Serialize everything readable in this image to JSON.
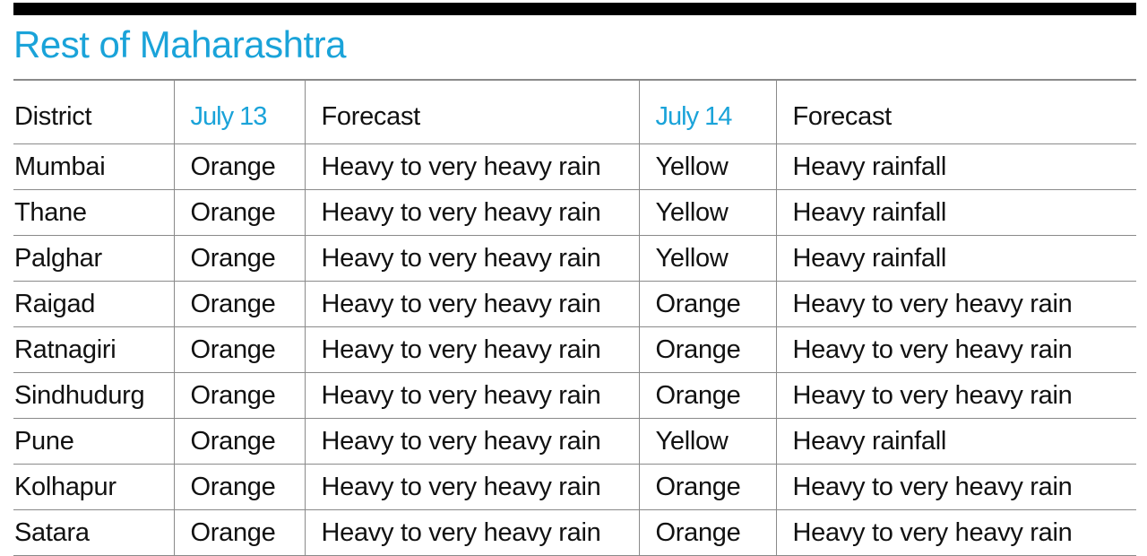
{
  "title": "Rest of Maharashtra",
  "colors": {
    "title": "#1aa3d9",
    "date_header": "#1aa3d9",
    "rule": "#000000",
    "grid": "#8a8a8a"
  },
  "table": {
    "headers": [
      "District",
      "July 13",
      "Forecast",
      "July 14",
      "Forecast"
    ],
    "rows": [
      [
        "Mumbai",
        "Orange",
        "Heavy to very heavy rain",
        "Yellow",
        "Heavy rainfall"
      ],
      [
        "Thane",
        "Orange",
        "Heavy to very heavy rain",
        "Yellow",
        "Heavy rainfall"
      ],
      [
        "Palghar",
        "Orange",
        "Heavy to very heavy rain",
        "Yellow",
        "Heavy rainfall"
      ],
      [
        "Raigad",
        "Orange",
        "Heavy to very heavy rain",
        "Orange",
        "Heavy to very heavy rain"
      ],
      [
        "Ratnagiri",
        "Orange",
        "Heavy to very heavy rain",
        "Orange",
        "Heavy to very heavy rain"
      ],
      [
        "Sindhudurg",
        "Orange",
        "Heavy to very heavy rain",
        "Orange",
        "Heavy to very heavy rain"
      ],
      [
        "Pune",
        "Orange",
        "Heavy to very heavy rain",
        "Yellow",
        "Heavy rainfall"
      ],
      [
        "Kolhapur",
        "Orange",
        "Heavy to very heavy rain",
        "Orange",
        "Heavy to very heavy rain"
      ],
      [
        "Satara",
        "Orange",
        "Heavy to very heavy rain",
        "Orange",
        "Heavy to very heavy rain"
      ]
    ]
  }
}
